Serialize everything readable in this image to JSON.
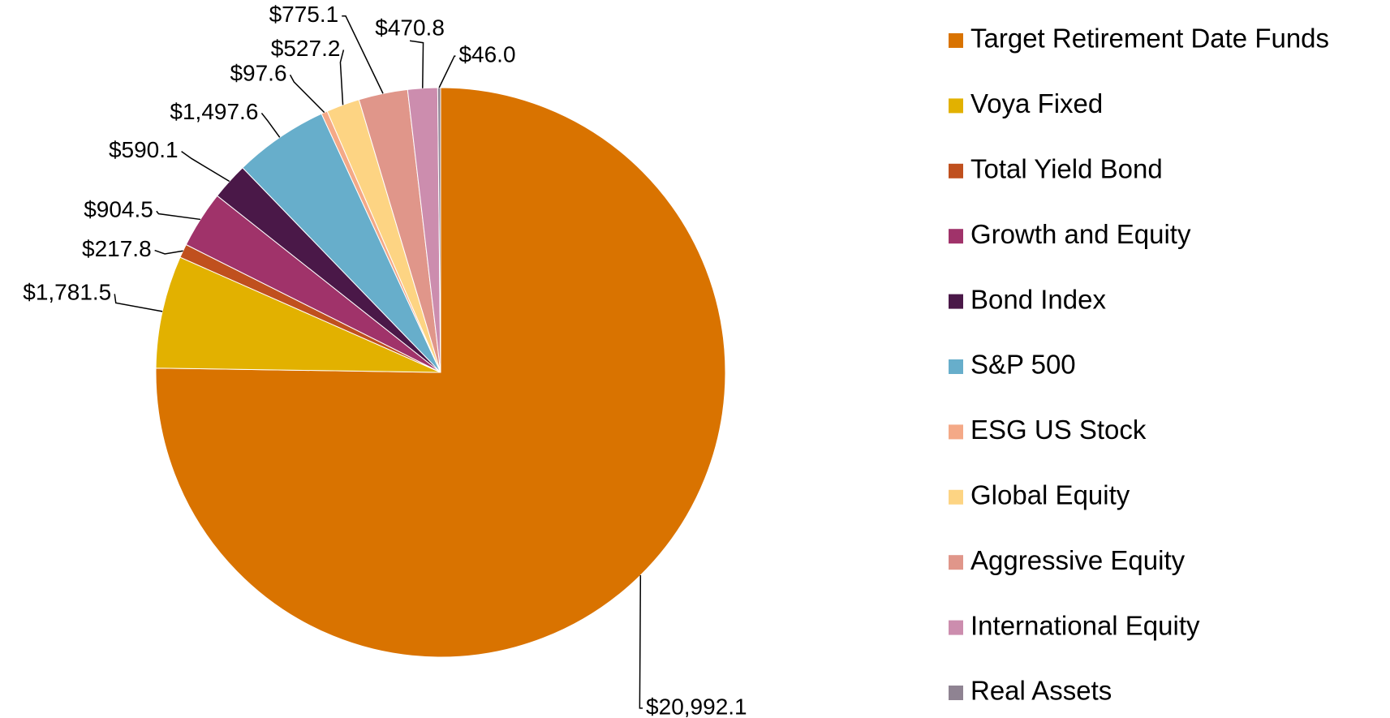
{
  "chart_data": {
    "type": "pie",
    "categories": [
      "Target Retirement Date Funds",
      "Voya Fixed",
      "Total Yield Bond",
      "Growth and Equity",
      "Bond Index",
      "S&P 500",
      "ESG US Stock",
      "Global Equity",
      "Aggressive Equity",
      "International Equity",
      "Real Assets"
    ],
    "values": [
      20992.1,
      1781.5,
      217.8,
      904.5,
      590.1,
      1497.6,
      97.6,
      527.2,
      775.1,
      470.8,
      46.0
    ],
    "value_labels": [
      "$20,992.1",
      "$1,781.5",
      "$217.8",
      "$904.5",
      "$590.1",
      "$1,497.6",
      "$97.6",
      "$527.2",
      "$775.1",
      "$470.8",
      "$46.0"
    ],
    "colors": [
      "#D97300",
      "#E2B100",
      "#C0501E",
      "#A0336A",
      "#4A1848",
      "#67AECB",
      "#F4A987",
      "#FDD483",
      "#E0968A",
      "#CC8DAE",
      "#8F8392"
    ],
    "legend": "right"
  }
}
